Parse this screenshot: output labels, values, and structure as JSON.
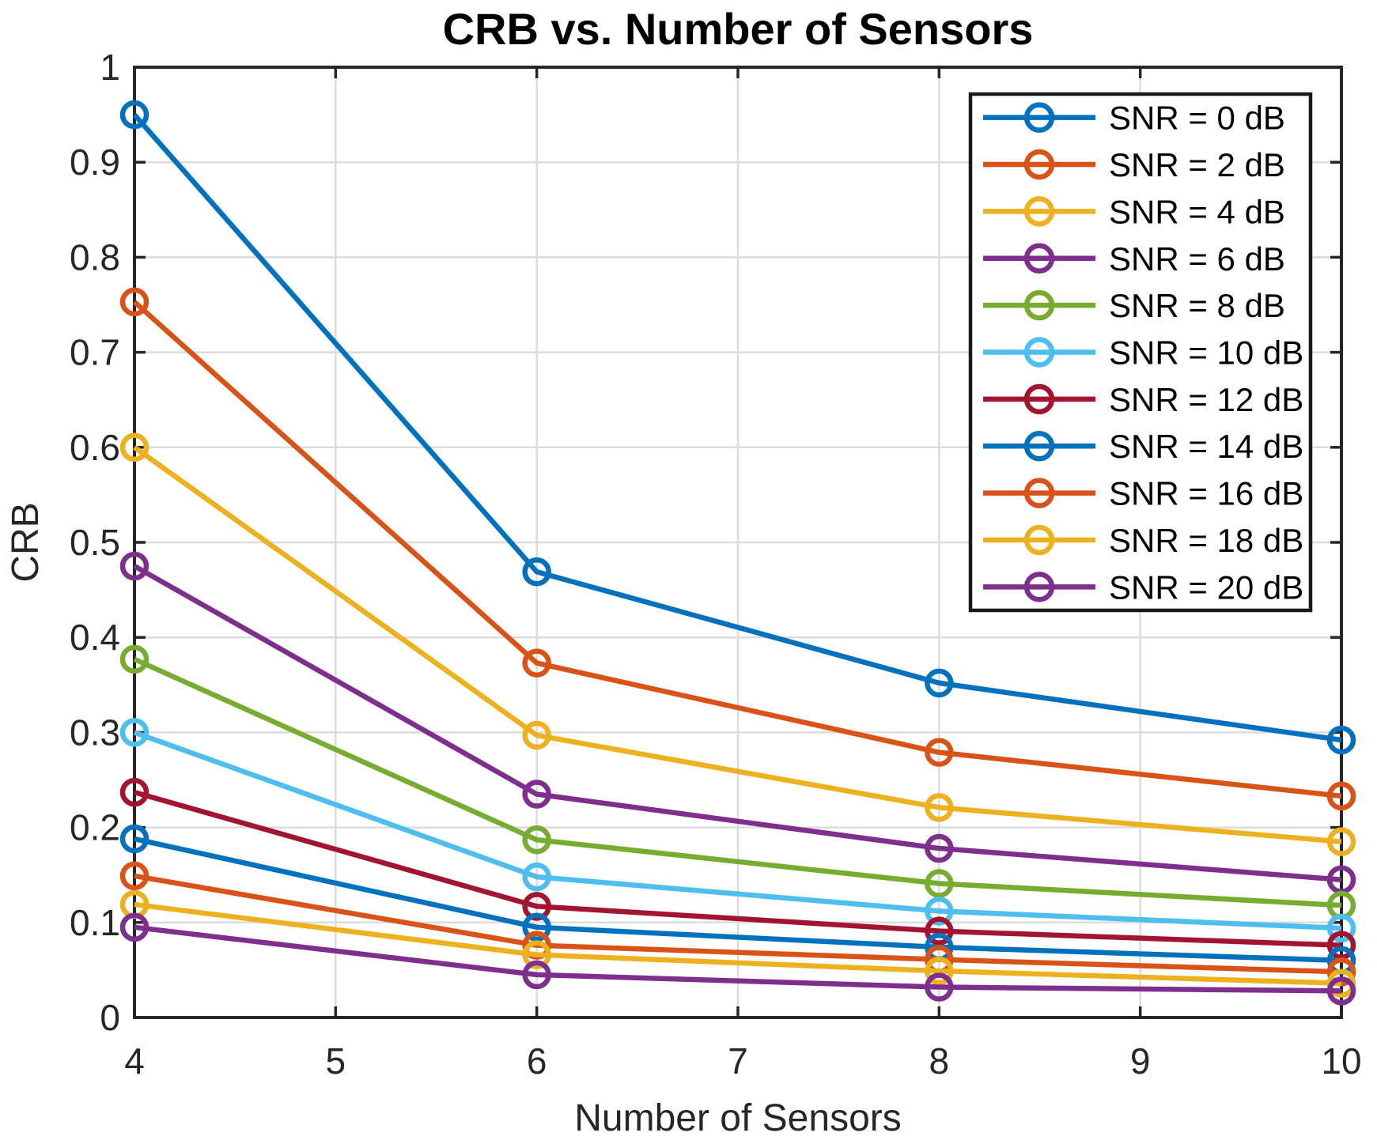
{
  "chart_data": {
    "type": "line",
    "title": "CRB vs. Number of Sensors",
    "xlabel": "Number of Sensors",
    "ylabel": "CRB",
    "x": [
      4,
      6,
      8,
      10
    ],
    "xlim": [
      4,
      10
    ],
    "ylim": [
      0,
      1
    ],
    "xticks": [
      4,
      5,
      6,
      7,
      8,
      9,
      10
    ],
    "xticklabels": [
      "4",
      "5",
      "6",
      "7",
      "8",
      "9",
      "10"
    ],
    "yticks": [
      0,
      0.1,
      0.2,
      0.3,
      0.4,
      0.5,
      0.6,
      0.7,
      0.8,
      0.9,
      1
    ],
    "yticklabels": [
      "0",
      "0.1",
      "0.2",
      "0.3",
      "0.4",
      "0.5",
      "0.6",
      "0.7",
      "0.8",
      "0.9",
      "1"
    ],
    "grid": true,
    "marker": "circle",
    "legend_position": "northeast",
    "series": [
      {
        "name": "SNR = 0 dB",
        "color": "#0072BD",
        "values": [
          0.95,
          0.469,
          0.352,
          0.292
        ]
      },
      {
        "name": "SNR = 2 dB",
        "color": "#D95319",
        "values": [
          0.753,
          0.373,
          0.279,
          0.233
        ]
      },
      {
        "name": "SNR = 4 dB",
        "color": "#EDB120",
        "values": [
          0.6,
          0.297,
          0.221,
          0.185
        ]
      },
      {
        "name": "SNR = 6 dB",
        "color": "#7E2F8E",
        "values": [
          0.475,
          0.235,
          0.178,
          0.145
        ]
      },
      {
        "name": "SNR = 8 dB",
        "color": "#77AC30",
        "values": [
          0.377,
          0.187,
          0.141,
          0.118
        ]
      },
      {
        "name": "SNR = 10 dB",
        "color": "#4DBEEE",
        "values": [
          0.3,
          0.148,
          0.112,
          0.094
        ]
      },
      {
        "name": "SNR = 12 dB",
        "color": "#A2142F",
        "values": [
          0.237,
          0.117,
          0.091,
          0.076
        ]
      },
      {
        "name": "SNR = 14 dB",
        "color": "#0072BD",
        "values": [
          0.188,
          0.095,
          0.074,
          0.06
        ]
      },
      {
        "name": "SNR = 16 dB",
        "color": "#D95319",
        "values": [
          0.149,
          0.076,
          0.061,
          0.048
        ]
      },
      {
        "name": "SNR = 18 dB",
        "color": "#EDB120",
        "values": [
          0.119,
          0.066,
          0.049,
          0.036
        ]
      },
      {
        "name": "SNR = 20 dB",
        "color": "#7E2F8E",
        "values": [
          0.095,
          0.045,
          0.032,
          0.028
        ]
      }
    ]
  },
  "figure": {
    "background_color": "#FFFFFF",
    "axis_color": "#262626",
    "grid_color": "#DCDCDC",
    "legend_border_color": "#1A1A1A",
    "legend_background_color": "#FFFFFF"
  }
}
